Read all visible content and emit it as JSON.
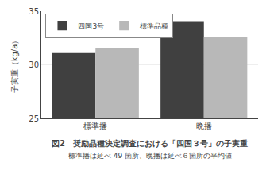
{
  "chart_data": {
    "type": "bar",
    "categories": [
      "標準播",
      "晩播"
    ],
    "series": [
      {
        "name": "四国3号",
        "color": "#404040",
        "values": [
          31.1,
          34.0
        ]
      },
      {
        "name": "標準品種",
        "color": "#b8b8b8",
        "values": [
          31.6,
          32.6
        ]
      }
    ],
    "ylabel": "子実重（kg/a）",
    "ylim": [
      25,
      35
    ],
    "yticks": [
      25,
      30,
      35
    ],
    "grid": true,
    "legend": "upper left",
    "annotations": [
      "図2　奨励品種決定調査における「四国３号」の子実重",
      "標準播は延べ 49 箇所、晩播は延べ６箇所の平均値"
    ]
  }
}
